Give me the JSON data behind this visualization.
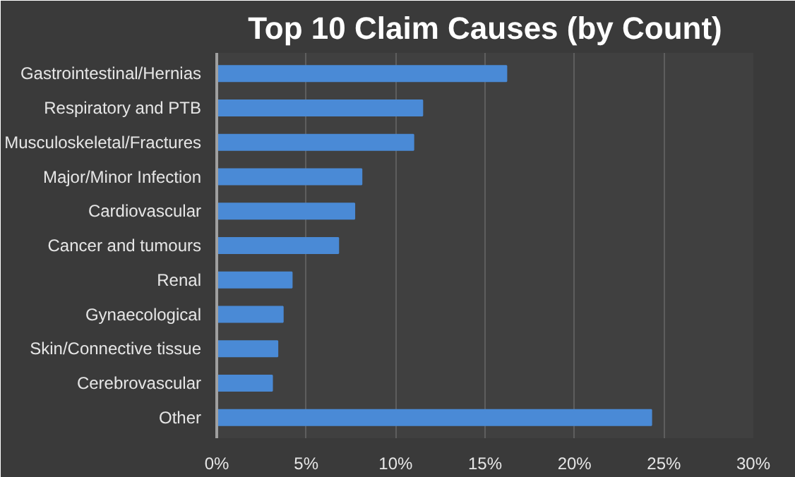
{
  "chart_data": {
    "type": "bar",
    "orientation": "horizontal",
    "title": "Top 10 Claim Causes (by Count)",
    "categories": [
      "Gastrointestinal/Hernias",
      "Respiratory and PTB",
      "Musculoskeletal/Fractures",
      "Major/Minor Infection",
      "Cardiovascular",
      "Cancer and tumours",
      "Renal",
      "Gynaecological",
      "Skin/Connective tissue",
      "Cerebrovascular",
      "Other"
    ],
    "values": [
      16.2,
      11.5,
      11.0,
      8.1,
      7.7,
      6.8,
      4.2,
      3.7,
      3.4,
      3.1,
      24.3
    ],
    "color": "#4a8ad6",
    "xlim": [
      0,
      30
    ],
    "xticks": [
      {
        "value": 0,
        "label": "0%"
      },
      {
        "value": 5,
        "label": "5%"
      },
      {
        "value": 10,
        "label": "10%"
      },
      {
        "value": 15,
        "label": "15%"
      },
      {
        "value": 20,
        "label": "20%"
      },
      {
        "value": 25,
        "label": "25%"
      },
      {
        "value": 30,
        "label": "30%"
      }
    ],
    "grid": "x"
  }
}
